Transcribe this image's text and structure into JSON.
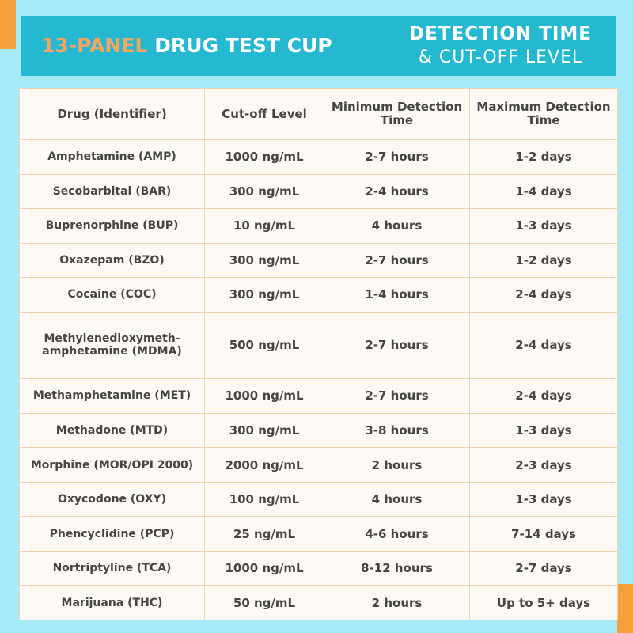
{
  "banner": {
    "title_highlight": "13-PANEL",
    "title_rest": "DRUG TEST CUP",
    "subtitle_line1": "DETECTION TIME",
    "subtitle_line2": "& CUT-OFF LEVEL"
  },
  "colors": {
    "background": "#a7ebf7",
    "banner": "#25b9d1",
    "accent": "#f5a03a",
    "highlight_text": "#f5a561",
    "table_bg": "#fdf9f5",
    "table_border": "#f1d5ae"
  },
  "table": {
    "headers": {
      "drug": "Drug (Identifier)",
      "cutoff": "Cut-off Level",
      "min": "Minimum Detection Time",
      "max": "Maximum Detection Time"
    },
    "rows": [
      {
        "drug": "Amphetamine (AMP)",
        "cutoff": "1000 ng/mL",
        "min": "2-7 hours",
        "max": "1-2 days"
      },
      {
        "drug": "Secobarbital (BAR)",
        "cutoff": "300 ng/mL",
        "min": "2-4 hours",
        "max": "1-4 days"
      },
      {
        "drug": "Buprenorphine (BUP)",
        "cutoff": "10 ng/mL",
        "min": "4 hours",
        "max": "1-3 days"
      },
      {
        "drug": "Oxazepam (BZO)",
        "cutoff": "300 ng/mL",
        "min": "2-7 hours",
        "max": "1-2 days"
      },
      {
        "drug": "Cocaine (COC)",
        "cutoff": "300 ng/mL",
        "min": "1-4 hours",
        "max": "2-4 days"
      },
      {
        "drug": "Methylenedioxymeth-amphetamine (MDMA)",
        "cutoff": "500 ng/mL",
        "min": "2-7 hours",
        "max": "2-4 days"
      },
      {
        "drug": "Methamphetamine (MET)",
        "cutoff": "1000 ng/mL",
        "min": "2-7 hours",
        "max": "2-4 days"
      },
      {
        "drug": "Methadone (MTD)",
        "cutoff": "300 ng/mL",
        "min": "3-8 hours",
        "max": "1-3 days"
      },
      {
        "drug": "Morphine (MOR/OPI 2000)",
        "cutoff": "2000 ng/mL",
        "min": "2 hours",
        "max": "2-3 days"
      },
      {
        "drug": "Oxycodone (OXY)",
        "cutoff": "100 ng/mL",
        "min": "4 hours",
        "max": "1-3 days"
      },
      {
        "drug": "Phencyclidine (PCP)",
        "cutoff": "25 ng/mL",
        "min": "4-6 hours",
        "max": "7-14 days"
      },
      {
        "drug": "Nortriptyline (TCA)",
        "cutoff": "1000 ng/mL",
        "min": "8-12 hours",
        "max": "2-7 days"
      },
      {
        "drug": "Marijuana (THC)",
        "cutoff": "50 ng/mL",
        "min": "2 hours",
        "max": "Up to 5+ days"
      }
    ]
  }
}
